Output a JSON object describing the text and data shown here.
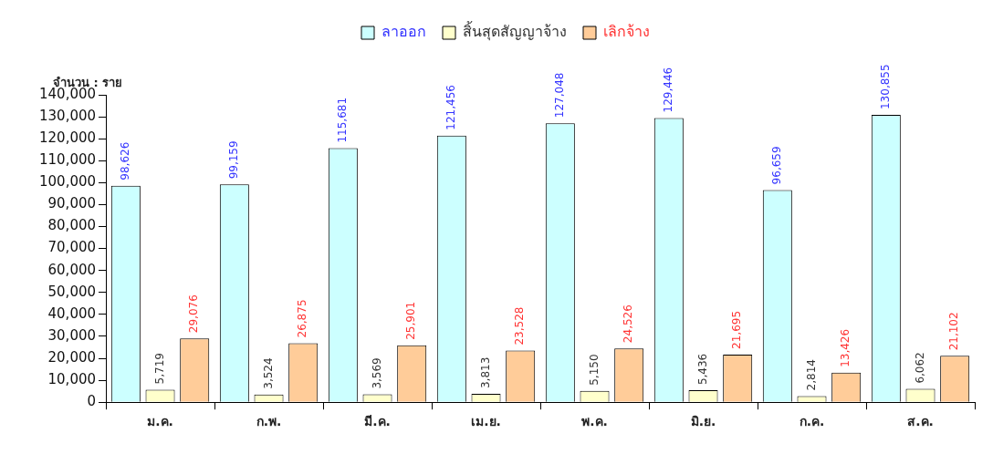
{
  "chart_data": {
    "type": "bar",
    "ylabel": "จำนวน : ราย",
    "categories": [
      "ม.ค.",
      "ก.พ.",
      "มี.ค.",
      "เม.ย.",
      "พ.ค.",
      "มิ.ย.",
      "ก.ค.",
      "ส.ค."
    ],
    "series": [
      {
        "name": "ลาออก",
        "color": "#ccffff",
        "values": [
          98626,
          99159,
          115681,
          121456,
          127048,
          129446,
          96659,
          130855
        ],
        "value_labels": [
          "98,626",
          "99,159",
          "115,681",
          "121,456",
          "127,048",
          "129,446",
          "96,659",
          "130,855"
        ]
      },
      {
        "name": "สิ้นสุดสัญญาจ้าง",
        "color": "#ffffcc",
        "values": [
          5719,
          3524,
          3569,
          3813,
          5150,
          5436,
          2814,
          6062
        ],
        "value_labels": [
          "5,719",
          "3,524",
          "3,569",
          "3,813",
          "5,150",
          "5,436",
          "2,814",
          "6,062"
        ]
      },
      {
        "name": "เลิกจ้าง",
        "color": "#ffcc99",
        "values": [
          29076,
          26875,
          25901,
          23528,
          24526,
          21695,
          13426,
          21102
        ],
        "value_labels": [
          "29,076",
          "26,875",
          "25,901",
          "23,528",
          "24,526",
          "21,695",
          "13,426",
          "21,102"
        ]
      }
    ],
    "ylim": [
      0,
      140000
    ],
    "yticks": [
      0,
      {
        "value": 10000,
        "label": "10,000"
      },
      {
        "value": 20000,
        "label": "20,000"
      },
      {
        "value": 30000,
        "label": "30,000"
      },
      {
        "value": 40000,
        "label": "40,000"
      },
      {
        "value": 50000,
        "label": "50,000"
      },
      {
        "value": 60000,
        "label": "60,000"
      },
      {
        "value": 70000,
        "label": "70,000"
      },
      {
        "value": 80000,
        "label": "80,000"
      },
      {
        "value": 90000,
        "label": "90,000"
      },
      {
        "value": 100000,
        "label": "100,000"
      },
      {
        "value": 110000,
        "label": "110,000"
      },
      {
        "value": 120000,
        "label": "120,000"
      },
      {
        "value": 130000,
        "label": "130,000"
      },
      {
        "value": 140000,
        "label": "140,000"
      }
    ],
    "grid": false,
    "legend": "top"
  }
}
